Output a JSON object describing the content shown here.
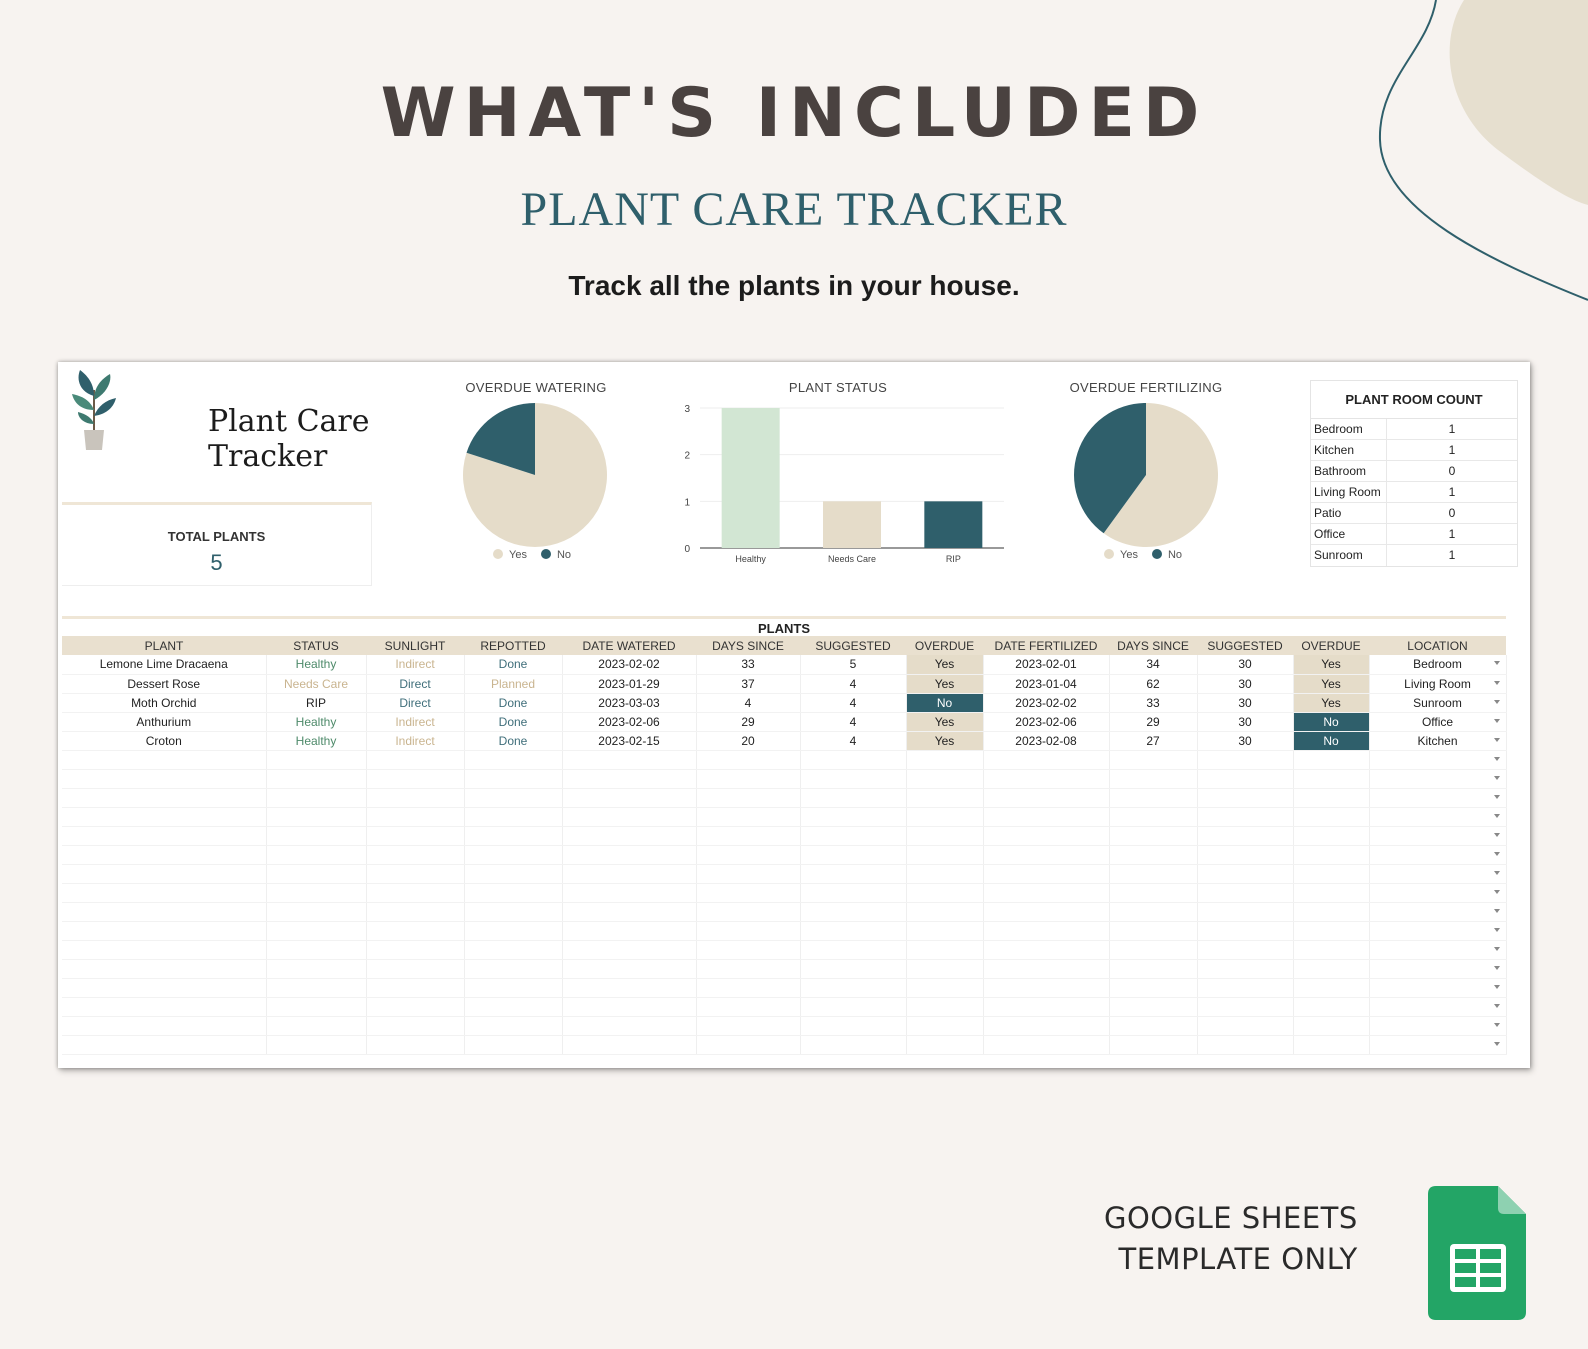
{
  "hero": {
    "title": "WHAT'S INCLUDED",
    "subtitle": "PLANT CARE TRACKER",
    "tagline": "Track all the plants in your house."
  },
  "sheet": {
    "title": "Plant Care Tracker",
    "total_label": "TOTAL PLANTS",
    "total_value": "5"
  },
  "colors": {
    "accent": "#2f5f6b",
    "beige": "#e5dcc9",
    "mint": "#d2e6d3"
  },
  "charts": {
    "watering": {
      "title": "OVERDUE WATERING",
      "legend": [
        "Yes",
        "No"
      ]
    },
    "status": {
      "title": "PLANT STATUS"
    },
    "fertilizing": {
      "title": "OVERDUE FERTILIZING",
      "legend": [
        "Yes",
        "No"
      ]
    }
  },
  "chart_data": [
    {
      "type": "pie",
      "title": "OVERDUE WATERING",
      "labels": [
        "Yes",
        "No"
      ],
      "values": [
        4,
        1
      ],
      "colors": [
        "#e5dcc9",
        "#2f5f6b"
      ]
    },
    {
      "type": "bar",
      "title": "PLANT STATUS",
      "categories": [
        "Healthy",
        "Needs Care",
        "RIP"
      ],
      "values": [
        3,
        1,
        1
      ],
      "ylim": [
        0,
        3
      ],
      "yticks": [
        "0",
        "1",
        "2",
        "3"
      ],
      "colors": [
        "#d2e6d3",
        "#e5dcc9",
        "#2f5f6b"
      ]
    },
    {
      "type": "pie",
      "title": "OVERDUE FERTILIZING",
      "labels": [
        "Yes",
        "No"
      ],
      "values": [
        3,
        2
      ],
      "colors": [
        "#e5dcc9",
        "#2f5f6b"
      ]
    }
  ],
  "room_count": {
    "title": "PLANT ROOM COUNT",
    "rows": [
      {
        "room": "Bedroom",
        "count": "1"
      },
      {
        "room": "Kitchen",
        "count": "1"
      },
      {
        "room": "Bathroom",
        "count": "0"
      },
      {
        "room": "Living Room",
        "count": "1"
      },
      {
        "room": "Patio",
        "count": "0"
      },
      {
        "room": "Office",
        "count": "1"
      },
      {
        "room": "Sunroom",
        "count": "1"
      }
    ]
  },
  "plants": {
    "title": "PLANTS",
    "columns": [
      "PLANT",
      "STATUS",
      "SUNLIGHT",
      "REPOTTED",
      "DATE WATERED",
      "DAYS SINCE",
      "SUGGESTED",
      "OVERDUE",
      "DATE FERTILIZED",
      "DAYS SINCE",
      "SUGGESTED",
      "OVERDUE",
      "LOCATION"
    ],
    "rows": [
      [
        "Lemone Lime Dracaena",
        "Healthy",
        "Indirect",
        "Done",
        "2023-02-02",
        "33",
        "5",
        "Yes",
        "2023-02-01",
        "34",
        "30",
        "Yes",
        "Bedroom"
      ],
      [
        "Dessert Rose",
        "Needs Care",
        "Direct",
        "Planned",
        "2023-01-29",
        "37",
        "4",
        "Yes",
        "2023-01-04",
        "62",
        "30",
        "Yes",
        "Living Room"
      ],
      [
        "Moth Orchid",
        "RIP",
        "Direct",
        "Done",
        "2023-03-03",
        "4",
        "4",
        "No",
        "2023-02-02",
        "33",
        "30",
        "Yes",
        "Sunroom"
      ],
      [
        "Anthurium",
        "Healthy",
        "Indirect",
        "Done",
        "2023-02-06",
        "29",
        "4",
        "Yes",
        "2023-02-06",
        "29",
        "30",
        "No",
        "Office"
      ],
      [
        "Croton",
        "Healthy",
        "Indirect",
        "Done",
        "2023-02-15",
        "20",
        "4",
        "Yes",
        "2023-02-08",
        "27",
        "30",
        "No",
        "Kitchen"
      ]
    ],
    "empty_rows": 16
  },
  "footer": {
    "line1": "GOOGLE SHEETS",
    "line2": "TEMPLATE ONLY",
    "icon": "google-sheets-icon"
  }
}
